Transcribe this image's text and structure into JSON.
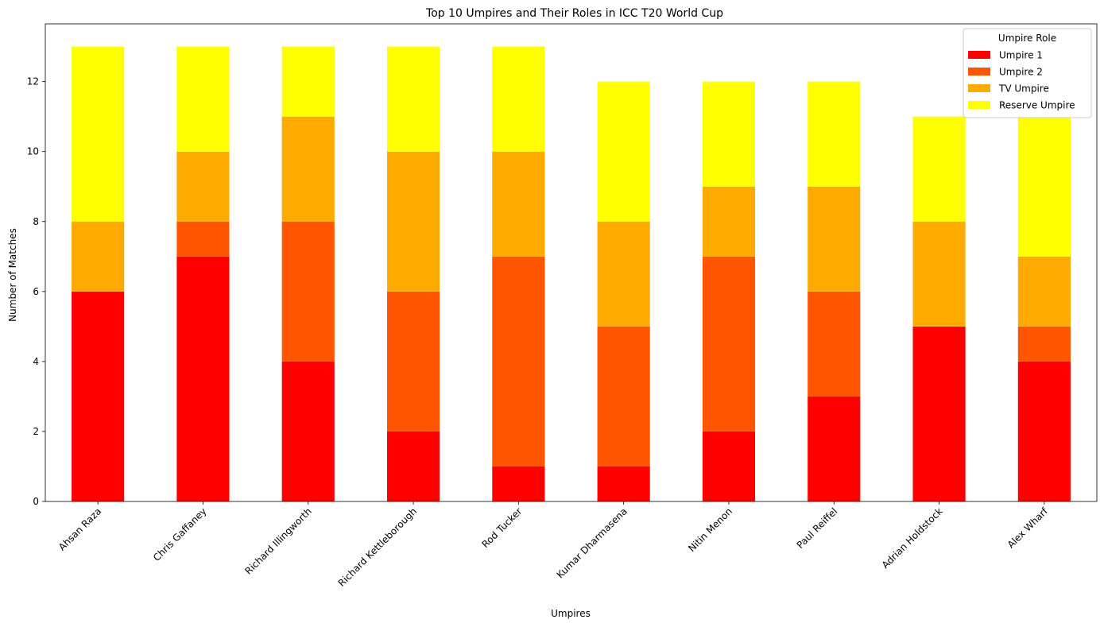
{
  "chart_data": {
    "type": "bar",
    "stacked": true,
    "title": "Top 10 Umpires and Their Roles in ICC T20 World Cup",
    "xlabel": "Umpires",
    "ylabel": "Number of Matches",
    "ylim": [
      0,
      13.65
    ],
    "yticks": [
      0,
      2,
      4,
      6,
      8,
      10,
      12
    ],
    "grid": false,
    "legend": {
      "title": "Umpire Role",
      "placement": "top-right"
    },
    "categories": [
      "Ahsan Raza",
      "Chris Gaffaney",
      "Richard Illingworth",
      "Richard Kettleborough",
      "Rod Tucker",
      "Kumar Dharmasena",
      "Nitin Menon",
      "Paul Reiffel",
      "Adrian Holdstock",
      "Alex Wharf"
    ],
    "series": [
      {
        "name": "Umpire 1",
        "color": "#ff0000",
        "values": [
          6,
          7,
          4,
          2,
          1,
          1,
          2,
          3,
          5,
          4
        ]
      },
      {
        "name": "Umpire 2",
        "color": "#ff5500",
        "values": [
          0,
          1,
          4,
          4,
          6,
          4,
          5,
          3,
          0,
          1
        ]
      },
      {
        "name": "TV Umpire",
        "color": "#ffaa00",
        "values": [
          2,
          2,
          3,
          4,
          3,
          3,
          2,
          3,
          3,
          2
        ]
      },
      {
        "name": "Reserve Umpire",
        "color": "#ffff00",
        "values": [
          5,
          3,
          2,
          3,
          3,
          4,
          3,
          3,
          3,
          4
        ]
      }
    ]
  }
}
